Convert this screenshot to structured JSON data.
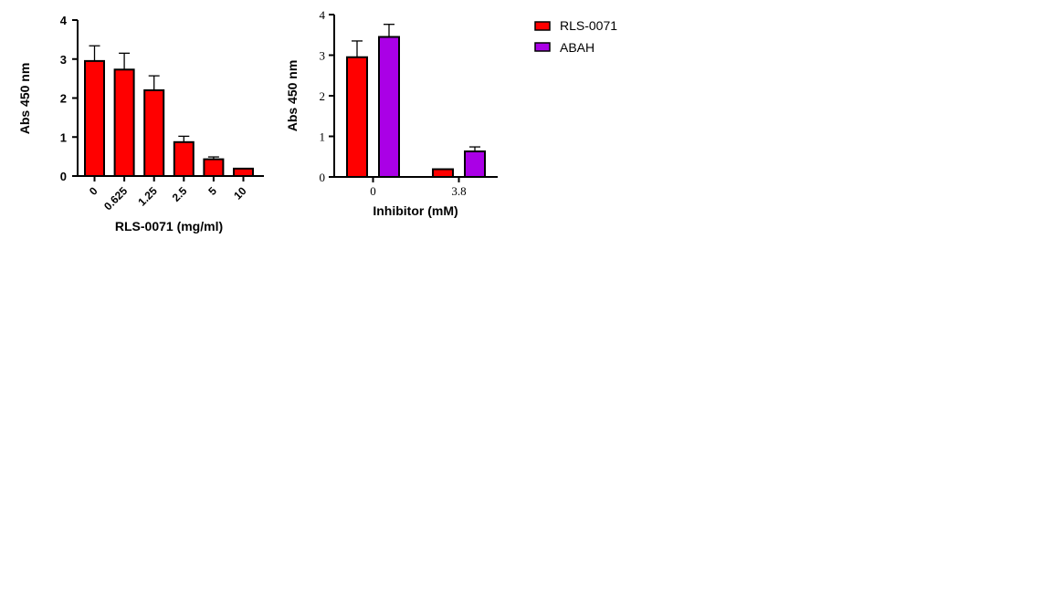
{
  "chart_data": [
    {
      "type": "bar",
      "categories": [
        "0",
        "0.625",
        "1.25",
        "2.5",
        "5",
        "10"
      ],
      "series": [
        {
          "name": "RLS-0071",
          "values": [
            2.95,
            2.73,
            2.2,
            0.87,
            0.43,
            0.19
          ],
          "errors": [
            0.39,
            0.42,
            0.37,
            0.15,
            0.06,
            0.01
          ],
          "color": "#ff0000"
        }
      ],
      "xlabel": "RLS-0071 (mg/ml)",
      "ylabel": "Abs 450 nm",
      "ylim": [
        0,
        4
      ],
      "yticks": [
        "0",
        "1",
        "2",
        "3",
        "4"
      ],
      "grid": false,
      "error_bars": "upper"
    },
    {
      "type": "bar",
      "categories": [
        "0",
        "3.8"
      ],
      "series": [
        {
          "name": "RLS-0071",
          "values": [
            2.95,
            0.19
          ],
          "errors": [
            0.4,
            0.01
          ],
          "color": "#ff0000"
        },
        {
          "name": "ABAH",
          "values": [
            3.45,
            0.63
          ],
          "errors": [
            0.31,
            0.11
          ],
          "color": "#aa00e6"
        }
      ],
      "xlabel": "Inhibitor (mM)",
      "ylabel": "Abs 450 nm",
      "ylim": [
        0,
        4
      ],
      "yticks": [
        "0",
        "1",
        "2",
        "3",
        "4"
      ],
      "grid": false,
      "legend_position": "right",
      "error_bars": "upper"
    }
  ]
}
